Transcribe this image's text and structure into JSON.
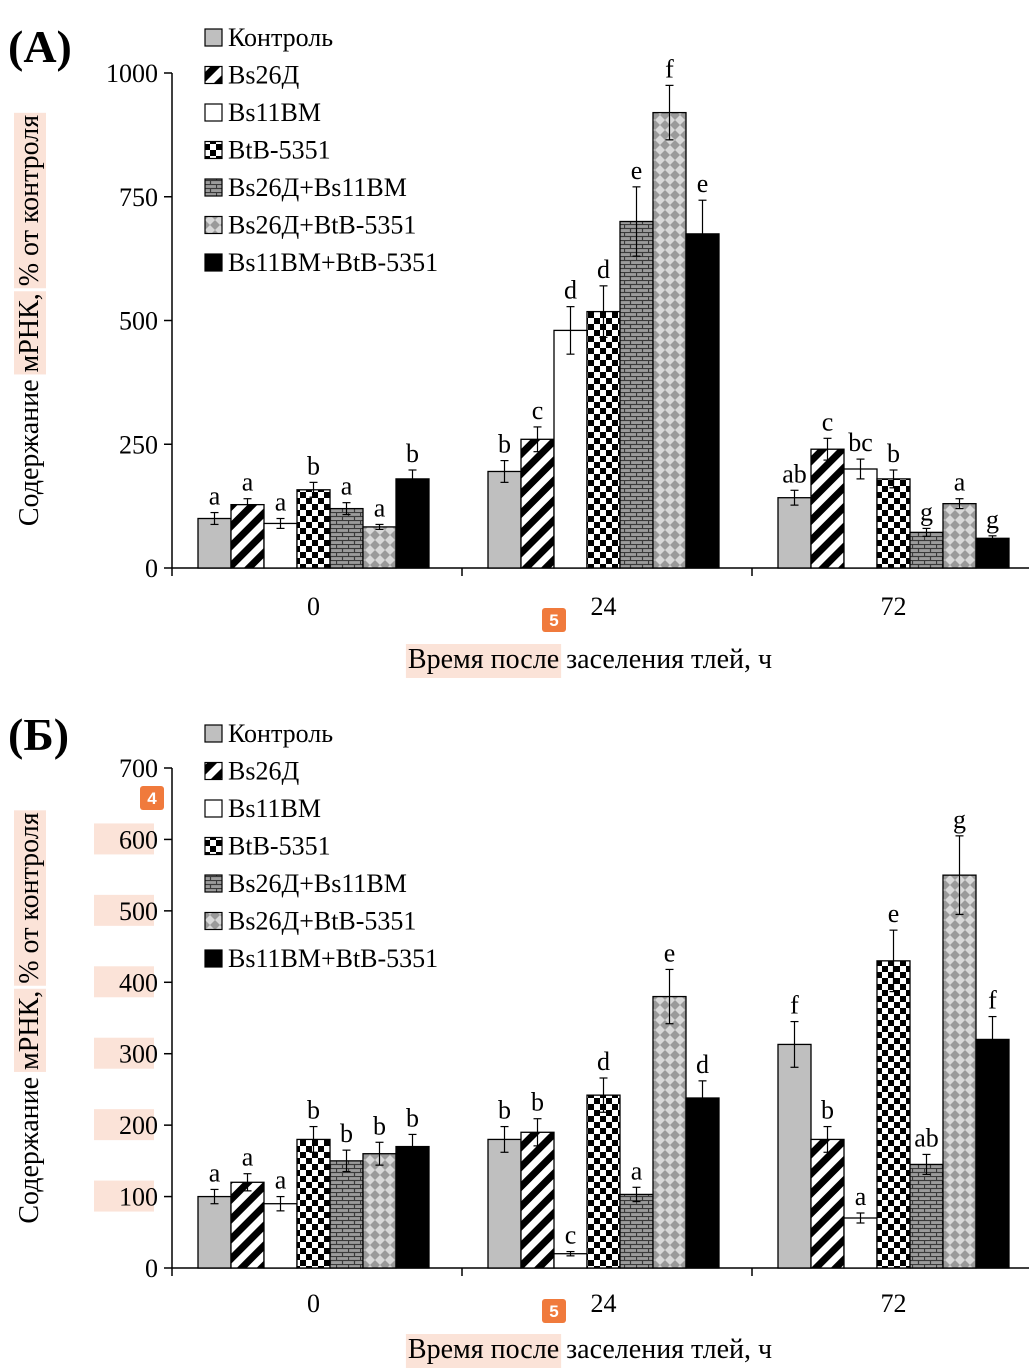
{
  "chart_data": [
    {
      "type": "bar",
      "panel_label": "(A)",
      "categories": [
        "0",
        "24",
        "72"
      ],
      "ylim": [
        0,
        1000
      ],
      "yticks": [
        0,
        250,
        500,
        750,
        1000
      ],
      "ylabel_parts": [
        "Содержание ",
        "мРНК,",
        " ",
        "% от контроля"
      ],
      "xlabel_parts": [
        "Время после",
        " заселения тлей, ч"
      ],
      "legend_position": "top-left",
      "badge": "5",
      "series": [
        {
          "name": "Контроль",
          "values": [
            100,
            195,
            142
          ],
          "errors": [
            12,
            22,
            15
          ],
          "letters": [
            "a",
            "b",
            "ab"
          ]
        },
        {
          "name": "Bs26Д",
          "values": [
            128,
            260,
            240
          ],
          "errors": [
            12,
            25,
            22
          ],
          "letters": [
            "a",
            "c",
            "c"
          ]
        },
        {
          "name": "Bs11BM",
          "values": [
            90,
            480,
            200
          ],
          "errors": [
            10,
            48,
            20
          ],
          "letters": [
            "a",
            "d",
            "bc"
          ]
        },
        {
          "name": "BtB-5351",
          "values": [
            158,
            518,
            180
          ],
          "errors": [
            15,
            52,
            18
          ],
          "letters": [
            "b",
            "d",
            "b"
          ]
        },
        {
          "name": "Bs26Д+Bs11BM",
          "values": [
            120,
            700,
            72
          ],
          "errors": [
            12,
            70,
            8
          ],
          "letters": [
            "a",
            "e",
            "g"
          ]
        },
        {
          "name": "Bs26Д+BtB-5351",
          "values": [
            83,
            920,
            130
          ],
          "errors": [
            5,
            55,
            10
          ],
          "letters": [
            "a",
            "f",
            "a"
          ]
        },
        {
          "name": "Bs11BM+BtB-5351",
          "values": [
            180,
            675,
            60
          ],
          "errors": [
            18,
            68,
            5
          ],
          "letters": [
            "b",
            "e",
            "g"
          ]
        }
      ]
    },
    {
      "type": "bar",
      "panel_label": "(Б)",
      "categories": [
        "0",
        "24",
        "72"
      ],
      "ylim": [
        0,
        700
      ],
      "yticks": [
        0,
        100,
        200,
        300,
        400,
        500,
        600,
        700
      ],
      "ylabel_parts": [
        "Содержание ",
        "мРНК,",
        " ",
        "% от контроля"
      ],
      "xlabel_parts": [
        "Время после",
        " заселения тлей, ч"
      ],
      "legend_position": "top-left",
      "badge": "5",
      "badge_axis": "4",
      "series": [
        {
          "name": "Контроль",
          "values": [
            100,
            180,
            313
          ],
          "errors": [
            10,
            18,
            32
          ],
          "letters": [
            "a",
            "b",
            "f"
          ]
        },
        {
          "name": "Bs26Д",
          "values": [
            120,
            190,
            180
          ],
          "errors": [
            12,
            19,
            18
          ],
          "letters": [
            "a",
            "b",
            "b"
          ]
        },
        {
          "name": "Bs11BM",
          "values": [
            90,
            20,
            70
          ],
          "errors": [
            10,
            3,
            7
          ],
          "letters": [
            "a",
            "c",
            "a"
          ]
        },
        {
          "name": "BtB-5351",
          "values": [
            180,
            242,
            430
          ],
          "errors": [
            18,
            24,
            43
          ],
          "letters": [
            "b",
            "d",
            "e"
          ]
        },
        {
          "name": "Bs26Д+Bs11BM",
          "values": [
            150,
            103,
            145
          ],
          "errors": [
            15,
            10,
            14
          ],
          "letters": [
            "b",
            "a",
            "ab"
          ]
        },
        {
          "name": "Bs26Д+BtB-5351",
          "values": [
            160,
            380,
            550
          ],
          "errors": [
            16,
            38,
            55
          ],
          "letters": [
            "b",
            "e",
            "g"
          ]
        },
        {
          "name": "Bs11BM+BtB-5351",
          "values": [
            170,
            238,
            320
          ],
          "errors": [
            17,
            24,
            32
          ],
          "letters": [
            "b",
            "d",
            "f"
          ]
        }
      ]
    }
  ]
}
